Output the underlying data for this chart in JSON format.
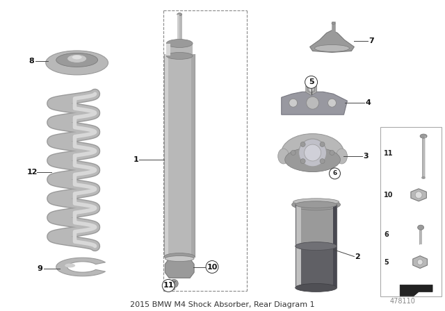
{
  "title": "2015 BMW M4 Shock Absorber, Rear Diagram 1",
  "background_color": "#ffffff",
  "part_number": "478110",
  "fig_width": 6.4,
  "fig_height": 4.48,
  "dpi": 100,
  "title_color": "#333333",
  "title_fontsize": 8,
  "label_fontsize": 8,
  "label_color": "#111111",
  "watermark_color": "#888888",
  "watermark_fontsize": 7,
  "gray_light": "#d4d4d4",
  "gray_mid": "#b8b8b8",
  "gray_dark": "#9a9a9a",
  "gray_darker": "#7a7a7a",
  "dark_gray": "#555555",
  "blue_gray": "#6a7080"
}
